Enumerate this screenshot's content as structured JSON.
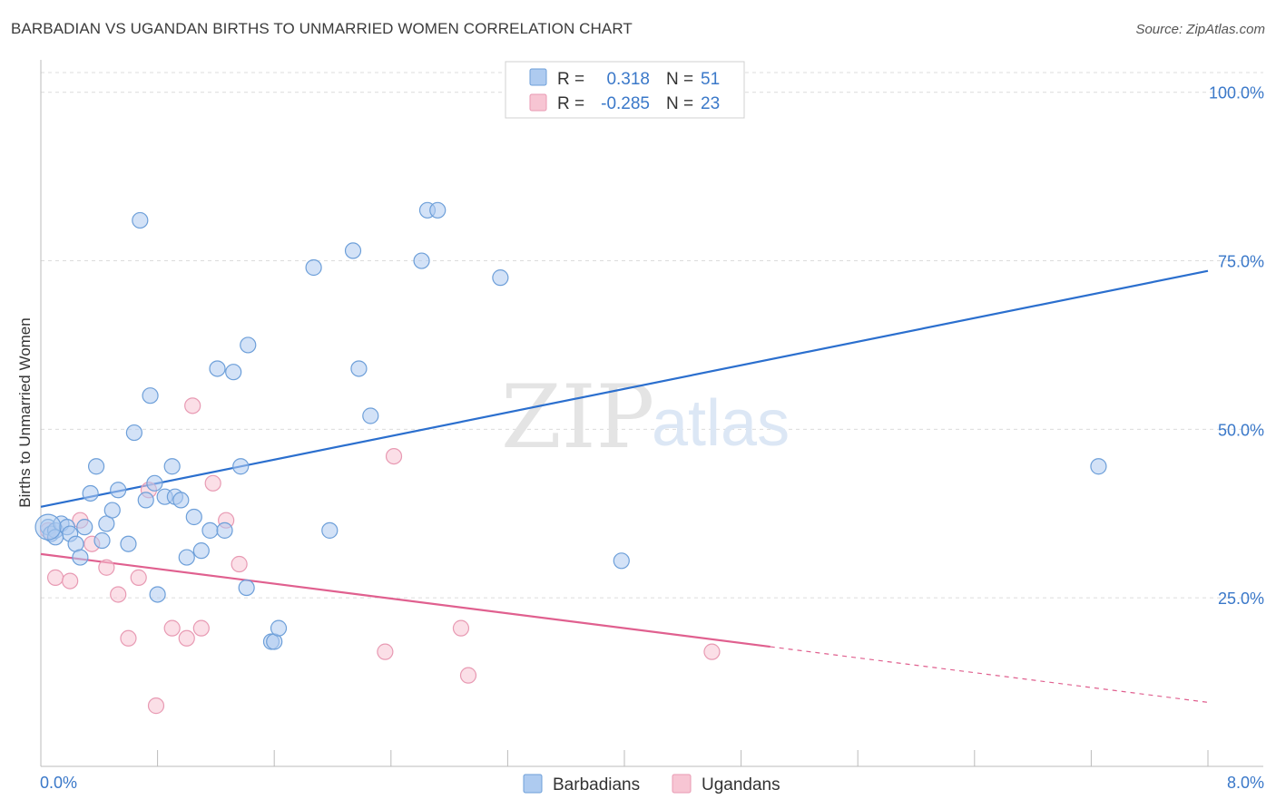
{
  "header": {
    "title": "BARBADIAN VS UGANDAN BIRTHS TO UNMARRIED WOMEN CORRELATION CHART",
    "source": "Source: ZipAtlas.com"
  },
  "watermark": {
    "zip": "ZIP",
    "atlas": "atlas"
  },
  "legend_box": {
    "rows": [
      {
        "r_label": "R =",
        "r_value": "0.318",
        "n_label": "N =",
        "n_value": "51"
      },
      {
        "r_label": "R =",
        "r_value": "-0.285",
        "n_label": "N =",
        "n_value": "23"
      }
    ]
  },
  "colors": {
    "barbadians_fill": "#aecbf0",
    "barbadians_stroke": "#6d9fd9",
    "barbadians_line": "#2b6fce",
    "ugandans_fill": "#f7c5d3",
    "ugandans_stroke": "#e89ab3",
    "ugandans_line": "#e0608f",
    "value_text": "#3a78c9",
    "grid": "#dcdcdc"
  },
  "chart_data": {
    "type": "scatter",
    "title": "BARBADIAN VS UGANDAN BIRTHS TO UNMARRIED WOMEN CORRELATION CHART",
    "xlabel": "",
    "ylabel": "Births to Unmarried Women",
    "xlim": [
      0,
      8
    ],
    "ylim": [
      0,
      104
    ],
    "x_tick_labels": [
      "0.0%",
      "8.0%"
    ],
    "y_ticks": [
      25,
      50,
      75,
      100
    ],
    "y_tick_labels": [
      "25.0%",
      "50.0%",
      "75.0%",
      "100.0%"
    ],
    "grid": true,
    "legend_position": "bottom-center",
    "series": [
      {
        "name": "Barbadians",
        "r": 0.318,
        "n": 51,
        "trend": {
          "x0": 0,
          "y0": 38.5,
          "x1": 8,
          "y1": 73.5,
          "solid_until": 8
        },
        "points": [
          [
            0.05,
            35.5
          ],
          [
            0.07,
            34.5
          ],
          [
            0.1,
            35
          ],
          [
            0.14,
            36
          ],
          [
            0.18,
            35.5
          ],
          [
            0.2,
            34.5
          ],
          [
            0.24,
            33
          ],
          [
            0.27,
            31
          ],
          [
            0.3,
            35.5
          ],
          [
            0.34,
            40.5
          ],
          [
            0.38,
            44.5
          ],
          [
            0.42,
            33.5
          ],
          [
            0.45,
            36
          ],
          [
            0.49,
            38
          ],
          [
            0.53,
            41
          ],
          [
            0.6,
            33
          ],
          [
            0.64,
            49.5
          ],
          [
            0.68,
            81
          ],
          [
            0.72,
            39.5
          ],
          [
            0.75,
            55
          ],
          [
            0.78,
            42
          ],
          [
            0.8,
            25.5
          ],
          [
            0.85,
            40
          ],
          [
            0.9,
            44.5
          ],
          [
            0.92,
            40
          ],
          [
            0.96,
            39.5
          ],
          [
            1.0,
            31
          ],
          [
            1.05,
            37
          ],
          [
            1.1,
            32
          ],
          [
            1.16,
            35
          ],
          [
            1.21,
            59
          ],
          [
            1.26,
            35
          ],
          [
            1.32,
            58.5
          ],
          [
            1.37,
            44.5
          ],
          [
            1.41,
            26.5
          ],
          [
            1.42,
            62.5
          ],
          [
            1.58,
            18.5
          ],
          [
            1.6,
            18.5
          ],
          [
            1.63,
            20.5
          ],
          [
            1.87,
            74
          ],
          [
            1.98,
            35
          ],
          [
            2.14,
            76.5
          ],
          [
            2.18,
            59
          ],
          [
            2.26,
            52
          ],
          [
            2.61,
            75
          ],
          [
            2.65,
            82.5
          ],
          [
            2.72,
            82.5
          ],
          [
            3.15,
            72.5
          ],
          [
            3.98,
            30.5
          ],
          [
            7.25,
            44.5
          ],
          [
            0.1,
            34
          ]
        ]
      },
      {
        "name": "Ugandans",
        "r": -0.285,
        "n": 23,
        "trend": {
          "x0": 0,
          "y0": 31.5,
          "x1": 8,
          "y1": 9.5,
          "solid_until": 5.0
        },
        "points": [
          [
            0.05,
            35
          ],
          [
            0.1,
            28
          ],
          [
            0.2,
            27.5
          ],
          [
            0.27,
            36.5
          ],
          [
            0.35,
            33
          ],
          [
            0.45,
            29.5
          ],
          [
            0.53,
            25.5
          ],
          [
            0.6,
            19
          ],
          [
            0.67,
            28
          ],
          [
            0.74,
            41
          ],
          [
            0.79,
            9
          ],
          [
            0.9,
            20.5
          ],
          [
            1.0,
            19
          ],
          [
            1.04,
            53.5
          ],
          [
            1.1,
            20.5
          ],
          [
            1.18,
            42
          ],
          [
            1.27,
            36.5
          ],
          [
            1.36,
            30
          ],
          [
            2.36,
            17
          ],
          [
            2.42,
            46
          ],
          [
            2.88,
            20.5
          ],
          [
            2.93,
            13.5
          ],
          [
            4.6,
            17
          ]
        ]
      }
    ]
  },
  "bottom_legend": {
    "items": [
      {
        "label": "Barbadians"
      },
      {
        "label": "Ugandans"
      }
    ]
  }
}
